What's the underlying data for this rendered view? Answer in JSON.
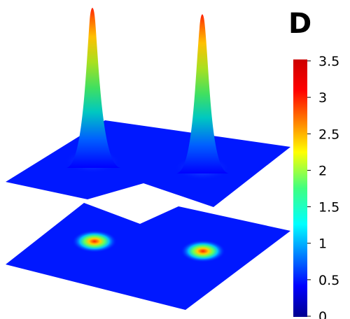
{
  "panel_label": "D",
  "chart_data": {
    "type": "surface-3d",
    "title": "",
    "surface": {
      "description_of_peaks": [
        {
          "peak": 1,
          "height": 3.5
        },
        {
          "peak": 2,
          "height": 3.3
        }
      ]
    },
    "contour_projection": {
      "spots": [
        {
          "spot": 1,
          "max_value": 3.5
        },
        {
          "spot": 2,
          "max_value": 3.3
        }
      ]
    },
    "colorbar": {
      "min": 0,
      "max": 3.5,
      "colormap": "jet",
      "ticks": [
        {
          "value": 0,
          "label": "0"
        },
        {
          "value": 0.5,
          "label": "0.5"
        },
        {
          "value": 1,
          "label": "1"
        },
        {
          "value": 1.5,
          "label": "1.5"
        },
        {
          "value": 2,
          "label": "2"
        },
        {
          "value": 2.5,
          "label": "2.5"
        },
        {
          "value": 3,
          "label": "3"
        },
        {
          "value": 3.5,
          "label": "3.5"
        }
      ]
    },
    "colors": {
      "low": "#0000ff",
      "mid": "#00ff80",
      "high": "#ff0000"
    }
  }
}
